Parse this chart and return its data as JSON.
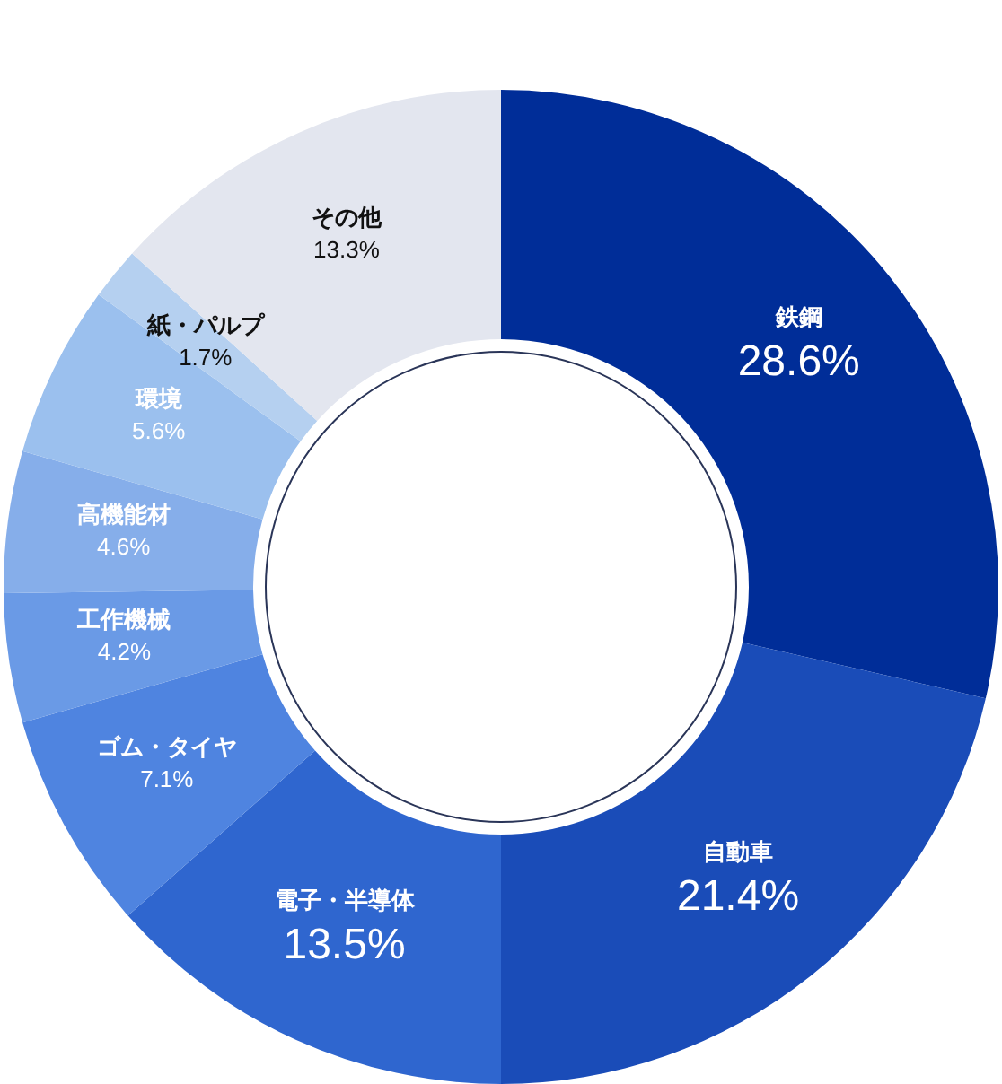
{
  "chart_data": {
    "type": "donut",
    "categories": [
      "鉄鋼",
      "自動車",
      "電子・半導体",
      "ゴム・タイヤ",
      "工作機械",
      "高機能材",
      "環境",
      "紙・パルプ",
      "その他"
    ],
    "values": [
      28.6,
      21.4,
      13.5,
      7.1,
      4.2,
      4.6,
      5.6,
      1.7,
      13.3
    ],
    "colors": [
      "#002d98",
      "#1a4cb8",
      "#2f66cf",
      "#4f84e0",
      "#6a9ae6",
      "#86aeea",
      "#9bc0ee",
      "#b5d0f0",
      "#e3e6ef"
    ],
    "value_labels": [
      "28.6%",
      "21.4%",
      "13.5%",
      "7.1%",
      "4.2%",
      "4.6%",
      "5.6%",
      "1.7%",
      "13.3%"
    ]
  }
}
